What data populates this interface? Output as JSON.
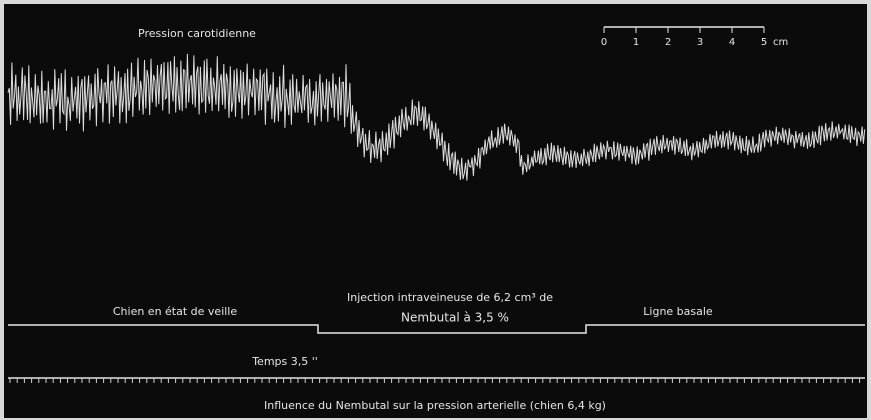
{
  "trace_title": "Pression carotidienne",
  "scale": {
    "labels": [
      "0",
      "1",
      "2",
      "3",
      "4",
      "5"
    ],
    "unit": "cm"
  },
  "signal": {
    "left": "Chien en état de veille",
    "injection_line1": "Injection intraveineuse de 6,2 cm³ de",
    "injection_line2": "Nembutal à 3,5 %",
    "right": "Ligne basale"
  },
  "time_label": "Temps 3,5 ''",
  "caption": "Influence du Nembutal sur la pression arterielle (chien 6,4 kg)"
}
